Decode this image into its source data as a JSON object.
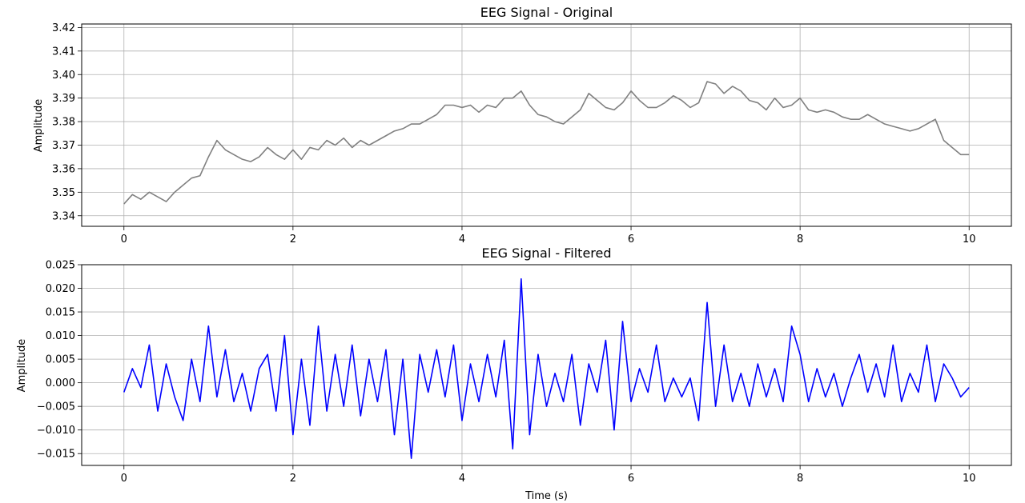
{
  "chart_data": [
    {
      "type": "line",
      "title": "EEG Signal - Original",
      "xlabel": "",
      "ylabel": "Amplitude",
      "xlim": [
        -0.5,
        10.5
      ],
      "ylim": [
        3.3355,
        3.4215
      ],
      "xticks": [
        0,
        2,
        4,
        6,
        8,
        10
      ],
      "xtick_labels": [
        "0",
        "2",
        "4",
        "6",
        "8",
        "10"
      ],
      "yticks": [
        3.34,
        3.35,
        3.36,
        3.37,
        3.38,
        3.39,
        3.4,
        3.41,
        3.42
      ],
      "ytick_labels": [
        "3.34",
        "3.35",
        "3.36",
        "3.37",
        "3.38",
        "3.39",
        "3.40",
        "3.41",
        "3.42"
      ],
      "grid": true,
      "color": "#808080",
      "series": [
        {
          "x": [
            0,
            0.1,
            0.2,
            0.3,
            0.4,
            0.5,
            0.6,
            0.7,
            0.8,
            0.9,
            1.0,
            1.1,
            1.2,
            1.3,
            1.4,
            1.5,
            1.6,
            1.7,
            1.8,
            1.9,
            2.0,
            2.1,
            2.2,
            2.3,
            2.4,
            2.5,
            2.6,
            2.7,
            2.8,
            2.9,
            3.0,
            3.1,
            3.2,
            3.3,
            3.4,
            3.5,
            3.6,
            3.7,
            3.8,
            3.9,
            4.0,
            4.1,
            4.2,
            4.3,
            4.4,
            4.5,
            4.6,
            4.7,
            4.8,
            4.9,
            5.0,
            5.1,
            5.2,
            5.3,
            5.4,
            5.5,
            5.6,
            5.7,
            5.8,
            5.9,
            6.0,
            6.1,
            6.2,
            6.3,
            6.4,
            6.5,
            6.6,
            6.7,
            6.8,
            6.9,
            7.0,
            7.1,
            7.2,
            7.3,
            7.4,
            7.5,
            7.6,
            7.7,
            7.8,
            7.9,
            8.0,
            8.1,
            8.2,
            8.3,
            8.4,
            8.5,
            8.6,
            8.7,
            8.8,
            8.9,
            9.0,
            9.1,
            9.2,
            9.3,
            9.4,
            9.5,
            9.6,
            9.7,
            9.8,
            9.9,
            10.0
          ],
          "values": [
            3.345,
            3.349,
            3.347,
            3.35,
            3.348,
            3.346,
            3.35,
            3.353,
            3.356,
            3.357,
            3.365,
            3.372,
            3.368,
            3.366,
            3.364,
            3.363,
            3.365,
            3.369,
            3.366,
            3.364,
            3.368,
            3.364,
            3.369,
            3.368,
            3.372,
            3.37,
            3.373,
            3.369,
            3.372,
            3.37,
            3.372,
            3.374,
            3.376,
            3.377,
            3.379,
            3.379,
            3.381,
            3.383,
            3.387,
            3.387,
            3.386,
            3.387,
            3.384,
            3.387,
            3.386,
            3.39,
            3.39,
            3.393,
            3.387,
            3.383,
            3.382,
            3.38,
            3.379,
            3.382,
            3.385,
            3.392,
            3.389,
            3.386,
            3.385,
            3.388,
            3.393,
            3.389,
            3.386,
            3.386,
            3.388,
            3.391,
            3.389,
            3.386,
            3.388,
            3.397,
            3.396,
            3.392,
            3.395,
            3.393,
            3.389,
            3.388,
            3.385,
            3.39,
            3.386,
            3.387,
            3.39,
            3.385,
            3.384,
            3.385,
            3.384,
            3.382,
            3.381,
            3.381,
            3.383,
            3.381,
            3.379,
            3.378,
            3.377,
            3.376,
            3.377,
            3.379,
            3.381,
            3.372,
            3.369,
            3.366,
            3.366
          ]
        }
      ]
    },
    {
      "type": "line",
      "title": "EEG Signal - Filtered",
      "xlabel": "Time (s)",
      "ylabel": "Amplitude",
      "xlim": [
        -0.5,
        10.5
      ],
      "ylim": [
        -0.0175,
        0.025
      ],
      "xticks": [
        0,
        2,
        4,
        6,
        8,
        10
      ],
      "xtick_labels": [
        "0",
        "2",
        "4",
        "6",
        "8",
        "10"
      ],
      "yticks": [
        -0.015,
        -0.01,
        -0.005,
        0.0,
        0.005,
        0.01,
        0.015,
        0.02,
        0.025
      ],
      "ytick_labels": [
        "−0.015",
        "−0.010",
        "−0.005",
        "0.000",
        "0.005",
        "0.010",
        "0.015",
        "0.020",
        "0.025"
      ],
      "grid": true,
      "color": "#0000ff",
      "series": [
        {
          "x": [
            0,
            0.1,
            0.2,
            0.3,
            0.4,
            0.5,
            0.6,
            0.7,
            0.8,
            0.9,
            1.0,
            1.1,
            1.2,
            1.3,
            1.4,
            1.5,
            1.6,
            1.7,
            1.8,
            1.9,
            2.0,
            2.1,
            2.2,
            2.3,
            2.4,
            2.5,
            2.6,
            2.7,
            2.8,
            2.9,
            3.0,
            3.1,
            3.2,
            3.3,
            3.4,
            3.5,
            3.6,
            3.7,
            3.8,
            3.9,
            4.0,
            4.1,
            4.2,
            4.3,
            4.4,
            4.5,
            4.6,
            4.7,
            4.8,
            4.9,
            5.0,
            5.1,
            5.2,
            5.3,
            5.4,
            5.5,
            5.6,
            5.7,
            5.8,
            5.9,
            6.0,
            6.1,
            6.2,
            6.3,
            6.4,
            6.5,
            6.6,
            6.7,
            6.8,
            6.9,
            7.0,
            7.1,
            7.2,
            7.3,
            7.4,
            7.5,
            7.6,
            7.7,
            7.8,
            7.9,
            8.0,
            8.1,
            8.2,
            8.3,
            8.4,
            8.5,
            8.6,
            8.7,
            8.8,
            8.9,
            9.0,
            9.1,
            9.2,
            9.3,
            9.4,
            9.5,
            9.6,
            9.7,
            9.8,
            9.9,
            10.0
          ],
          "values": [
            -0.002,
            0.003,
            -0.001,
            0.008,
            -0.006,
            0.004,
            -0.003,
            -0.008,
            0.005,
            -0.004,
            0.012,
            -0.003,
            0.007,
            -0.004,
            0.002,
            -0.006,
            0.003,
            0.006,
            -0.006,
            0.01,
            -0.011,
            0.005,
            -0.009,
            0.012,
            -0.006,
            0.006,
            -0.005,
            0.008,
            -0.007,
            0.005,
            -0.004,
            0.007,
            -0.011,
            0.005,
            -0.016,
            0.006,
            -0.002,
            0.007,
            -0.003,
            0.008,
            -0.008,
            0.004,
            -0.004,
            0.006,
            -0.003,
            0.009,
            -0.014,
            0.022,
            -0.011,
            0.006,
            -0.005,
            0.002,
            -0.004,
            0.006,
            -0.009,
            0.004,
            -0.002,
            0.009,
            -0.01,
            0.013,
            -0.004,
            0.003,
            -0.002,
            0.008,
            -0.004,
            0.001,
            -0.003,
            0.001,
            -0.008,
            0.017,
            -0.005,
            0.008,
            -0.004,
            0.002,
            -0.005,
            0.004,
            -0.003,
            0.003,
            -0.004,
            0.012,
            0.006,
            -0.004,
            0.003,
            -0.003,
            0.002,
            -0.005,
            0.001,
            0.006,
            -0.002,
            0.004,
            -0.003,
            0.008,
            -0.004,
            0.002,
            -0.002,
            0.008,
            -0.004,
            0.004,
            0.001,
            -0.003,
            -0.001
          ]
        }
      ]
    }
  ]
}
